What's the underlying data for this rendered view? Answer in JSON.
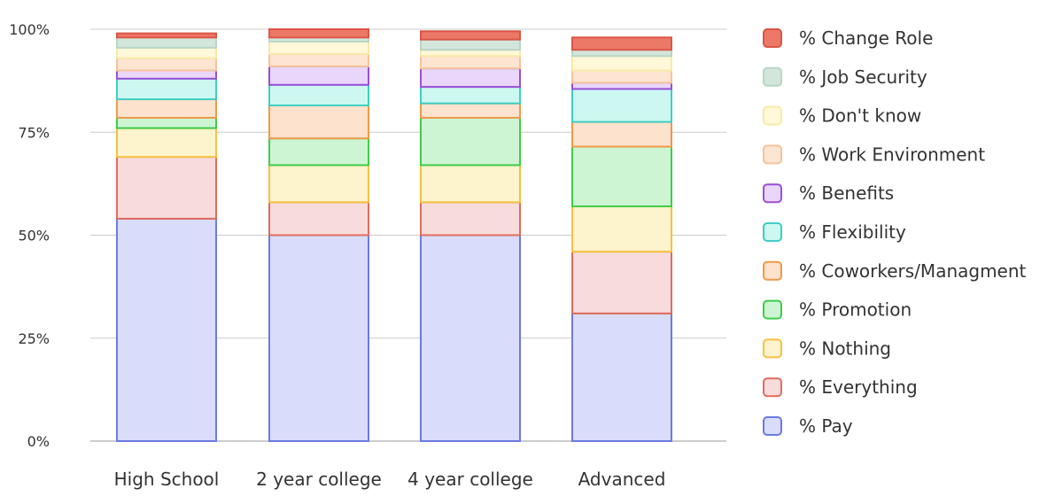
{
  "chart_data": {
    "type": "bar",
    "stacked": true,
    "categories": [
      "High School",
      "2 year college",
      "4 year college",
      "Advanced"
    ],
    "y_ticks": [
      "0%",
      "25%",
      "50%",
      "75%",
      "100%"
    ],
    "ylim": [
      0,
      100
    ],
    "grid": true,
    "legend_position": "right",
    "series": [
      {
        "name": "% Pay",
        "values": [
          54,
          50,
          50,
          31
        ],
        "fill": "#dadcfb",
        "stroke": "#6b7be0"
      },
      {
        "name": "% Everything",
        "values": [
          15,
          8,
          8,
          15
        ],
        "fill": "#f8dcdc",
        "stroke": "#e06c5c"
      },
      {
        "name": "% Nothing",
        "values": [
          7,
          9,
          9,
          11
        ],
        "fill": "#fdf3cc",
        "stroke": "#f5c242"
      },
      {
        "name": "% Promotion",
        "values": [
          2.5,
          6.5,
          11.5,
          14.5
        ],
        "fill": "#cdf5d3",
        "stroke": "#40cc4a"
      },
      {
        "name": "% Coworkers/Managment",
        "values": [
          4.5,
          8,
          3.5,
          6
        ],
        "fill": "#fde2cd",
        "stroke": "#ef9a4a"
      },
      {
        "name": "% Flexibility",
        "values": [
          5,
          5,
          4,
          8
        ],
        "fill": "#cdf8f1",
        "stroke": "#3fcfc3"
      },
      {
        "name": "% Benefits",
        "values": [
          2,
          4.5,
          4.5,
          1.5
        ],
        "fill": "#ead6fb",
        "stroke": "#9b4fd6"
      },
      {
        "name": "% Work Environment",
        "values": [
          3,
          3,
          3,
          3
        ],
        "fill": "#fde5d2",
        "stroke": "#f6c39a"
      },
      {
        "name": "% Don't know",
        "values": [
          2.5,
          3,
          1.5,
          3.5
        ],
        "fill": "#fff8d9",
        "stroke": "#f8eaa6"
      },
      {
        "name": "% Job Security",
        "values": [
          2.5,
          1,
          2.5,
          1.5
        ],
        "fill": "#d3e6dc",
        "stroke": "#b9d6c5"
      },
      {
        "name": "% Change Role",
        "values": [
          1,
          2,
          2,
          3
        ],
        "fill": "#ec7868",
        "stroke": "#dc5545"
      }
    ]
  }
}
